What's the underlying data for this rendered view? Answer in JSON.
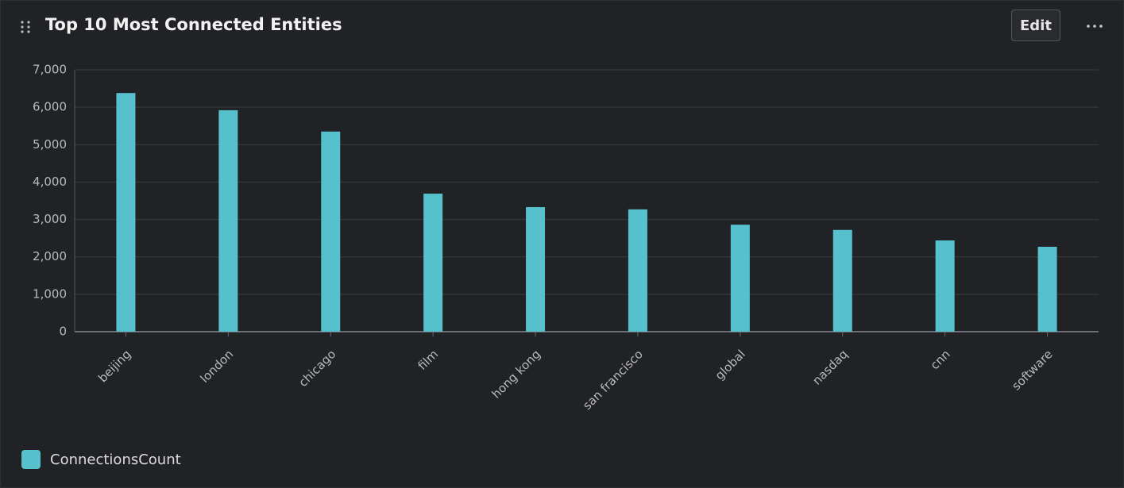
{
  "edit_button": "Edit",
  "chart_data": {
    "type": "bar",
    "title": "Top 10 Most Connected Entities",
    "categories": [
      "beijing",
      "london",
      "chicago",
      "film",
      "hong kong",
      "san francisco",
      "global",
      "nasdaq",
      "cnn",
      "software"
    ],
    "series": [
      {
        "name": "ConnectionsCount",
        "color": "#56c1cc",
        "values": [
          6380,
          5920,
          5350,
          3690,
          3330,
          3270,
          2860,
          2720,
          2440,
          2270
        ]
      }
    ],
    "ylim": [
      0,
      7000
    ],
    "yticks": [
      0,
      {
        "value": 1000,
        "label": "1,000"
      },
      {
        "value": 2000,
        "label": "2,000"
      },
      {
        "value": 3000,
        "label": "3,000"
      },
      {
        "value": 4000,
        "label": "4,000"
      },
      {
        "value": 5000,
        "label": "5,000"
      },
      {
        "value": 6000,
        "label": "6,000"
      },
      {
        "value": 7000,
        "label": "7,000"
      }
    ],
    "grid": true
  }
}
